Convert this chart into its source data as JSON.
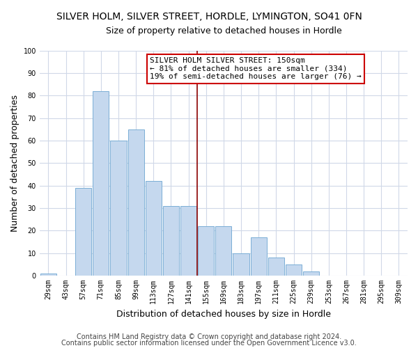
{
  "title": "SILVER HOLM, SILVER STREET, HORDLE, LYMINGTON, SO41 0FN",
  "subtitle": "Size of property relative to detached houses in Hordle",
  "xlabel": "Distribution of detached houses by size in Hordle",
  "ylabel": "Number of detached properties",
  "categories": [
    "29sqm",
    "43sqm",
    "57sqm",
    "71sqm",
    "85sqm",
    "99sqm",
    "113sqm",
    "127sqm",
    "141sqm",
    "155sqm",
    "169sqm",
    "183sqm",
    "197sqm",
    "211sqm",
    "225sqm",
    "239sqm",
    "253sqm",
    "267sqm",
    "281sqm",
    "295sqm",
    "309sqm"
  ],
  "values": [
    1,
    0,
    39,
    82,
    60,
    65,
    42,
    31,
    31,
    22,
    22,
    10,
    17,
    8,
    5,
    2,
    0,
    0,
    0,
    0,
    0
  ],
  "bar_color": "#c5d8ee",
  "bar_edge_color": "#7aaed6",
  "highlight_line_color": "#8b0000",
  "annotation_title": "SILVER HOLM SILVER STREET: 150sqm",
  "annotation_line1": "← 81% of detached houses are smaller (334)",
  "annotation_line2": "19% of semi-detached houses are larger (76) →",
  "annotation_box_color": "#ffffff",
  "annotation_box_edge": "#cc0000",
  "ylim": [
    0,
    100
  ],
  "footer1": "Contains HM Land Registry data © Crown copyright and database right 2024.",
  "footer2": "Contains public sector information licensed under the Open Government Licence v3.0.",
  "background_color": "#ffffff",
  "grid_color": "#d0d8e8",
  "title_fontsize": 10,
  "subtitle_fontsize": 9,
  "axis_label_fontsize": 9,
  "tick_fontsize": 7,
  "footer_fontsize": 7,
  "annotation_fontsize": 8
}
